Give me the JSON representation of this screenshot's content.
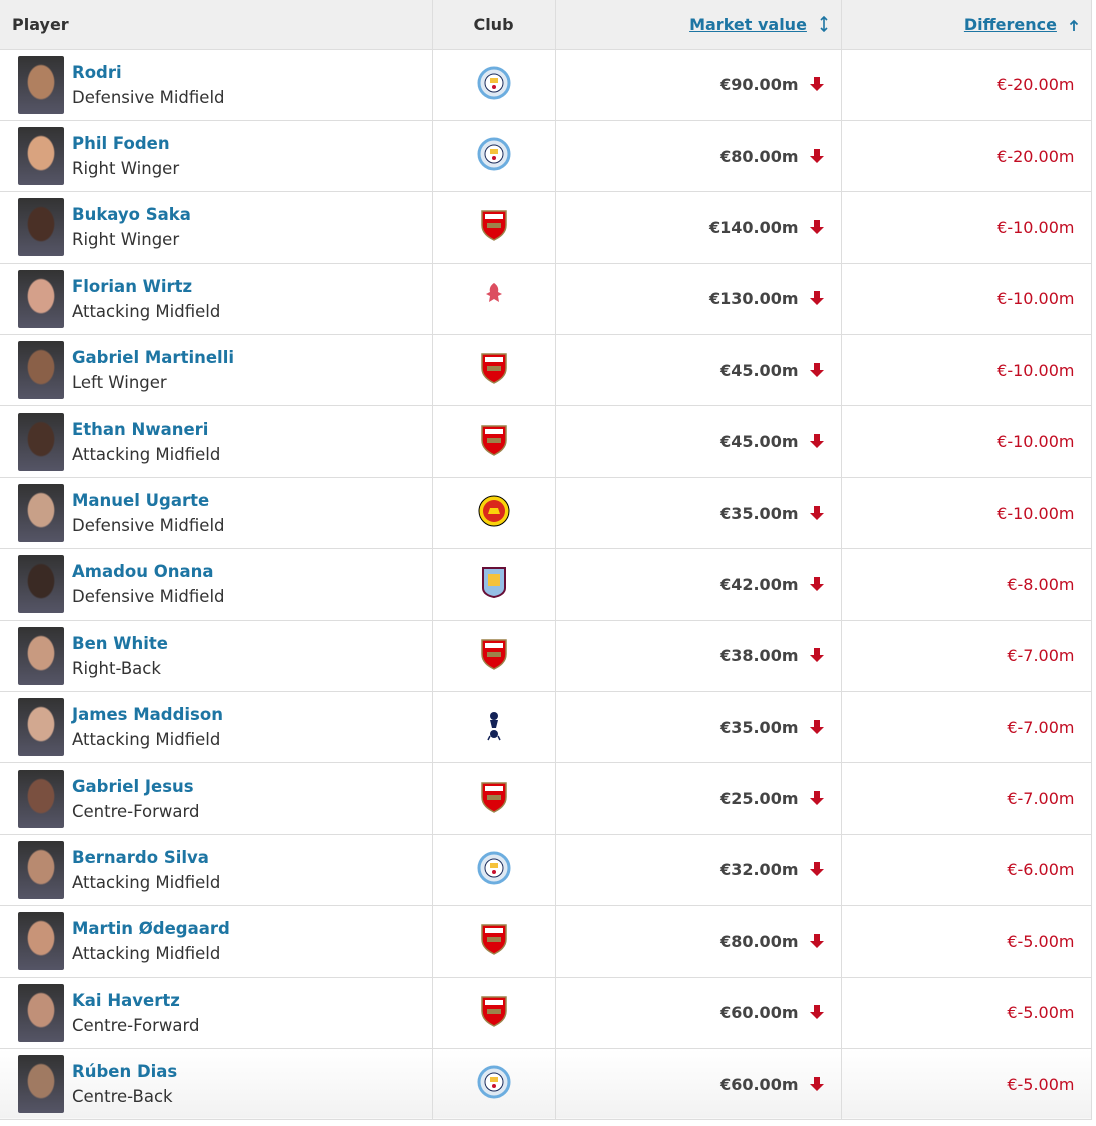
{
  "headers": {
    "player": "Player",
    "club": "Club",
    "market_value": "Market value",
    "difference": "Difference"
  },
  "sort": {
    "market_value": "sortable-icon",
    "difference": "sort-ascending-icon"
  },
  "colors": {
    "link": "#1d75a3",
    "negative": "#c20c22"
  },
  "rows": [
    {
      "name": "Rodri",
      "position": "Defensive Midfield",
      "club": "man-city",
      "mv": "€90.00m",
      "diff": "€-20.00m",
      "tone": "#b08060"
    },
    {
      "name": "Phil Foden",
      "position": "Right Winger",
      "club": "man-city",
      "mv": "€80.00m",
      "diff": "€-20.00m",
      "tone": "#d9a37f"
    },
    {
      "name": "Bukayo Saka",
      "position": "Right Winger",
      "club": "arsenal",
      "mv": "€140.00m",
      "diff": "€-10.00m",
      "tone": "#4a3026"
    },
    {
      "name": "Florian Wirtz",
      "position": "Attacking Midfield",
      "club": "liverpool",
      "mv": "€130.00m",
      "diff": "€-10.00m",
      "tone": "#d4a08a"
    },
    {
      "name": "Gabriel Martinelli",
      "position": "Left Winger",
      "club": "arsenal",
      "mv": "€45.00m",
      "diff": "€-10.00m",
      "tone": "#8a6048"
    },
    {
      "name": "Ethan Nwaneri",
      "position": "Attacking Midfield",
      "club": "arsenal",
      "mv": "€45.00m",
      "diff": "€-10.00m",
      "tone": "#4a3228"
    },
    {
      "name": "Manuel Ugarte",
      "position": "Defensive Midfield",
      "club": "man-utd",
      "mv": "€35.00m",
      "diff": "€-10.00m",
      "tone": "#c8a088"
    },
    {
      "name": "Amadou Onana",
      "position": "Defensive Midfield",
      "club": "aston-villa",
      "mv": "€42.00m",
      "diff": "€-8.00m",
      "tone": "#3a2a24"
    },
    {
      "name": "Ben White",
      "position": "Right-Back",
      "club": "arsenal",
      "mv": "€38.00m",
      "diff": "€-7.00m",
      "tone": "#c89a80"
    },
    {
      "name": "James Maddison",
      "position": "Attacking Midfield",
      "club": "tottenham",
      "mv": "€35.00m",
      "diff": "€-7.00m",
      "tone": "#d2a890"
    },
    {
      "name": "Gabriel Jesus",
      "position": "Centre-Forward",
      "club": "arsenal",
      "mv": "€25.00m",
      "diff": "€-7.00m",
      "tone": "#7a5040"
    },
    {
      "name": "Bernardo Silva",
      "position": "Attacking Midfield",
      "club": "man-city",
      "mv": "€32.00m",
      "diff": "€-6.00m",
      "tone": "#b88a70"
    },
    {
      "name": "Martin Ødegaard",
      "position": "Attacking Midfield",
      "club": "arsenal",
      "mv": "€80.00m",
      "diff": "€-5.00m",
      "tone": "#c89478"
    },
    {
      "name": "Kai Havertz",
      "position": "Centre-Forward",
      "club": "arsenal",
      "mv": "€60.00m",
      "diff": "€-5.00m",
      "tone": "#c09078"
    },
    {
      "name": "Rúben Dias",
      "position": "Centre-Back",
      "club": "man-city",
      "mv": "€60.00m",
      "diff": "€-5.00m",
      "tone": "#a07a62"
    }
  ]
}
